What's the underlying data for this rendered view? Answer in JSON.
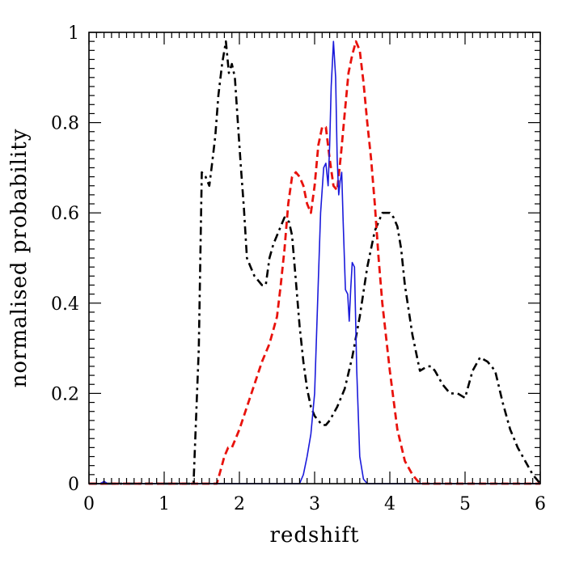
{
  "chart_data": {
    "type": "line",
    "title": "",
    "xlabel": "redshift",
    "ylabel": "normalised probability",
    "xlim": [
      0,
      6
    ],
    "ylim": [
      0,
      1
    ],
    "x_major_ticks": [
      0,
      1,
      2,
      3,
      4,
      5,
      6
    ],
    "x_tick_labels": [
      "0",
      "1",
      "2",
      "3",
      "4",
      "5",
      "6"
    ],
    "y_major_ticks": [
      0,
      0.2,
      0.4,
      0.6,
      0.8,
      1
    ],
    "y_tick_labels": [
      "0",
      "0.2",
      "0.4",
      "0.6",
      "0.8",
      "1"
    ],
    "grid": false,
    "legend": "none",
    "series": [
      {
        "color": "#000000",
        "style": "dash-dot",
        "x": [
          0,
          1.39,
          1.42,
          1.46,
          1.5,
          1.55,
          1.6,
          1.63,
          1.68,
          1.72,
          1.77,
          1.82,
          1.86,
          1.9,
          1.94,
          1.98,
          2.02,
          2.06,
          2.1,
          2.15,
          2.2,
          2.25,
          2.3,
          2.35,
          2.4,
          2.45,
          2.5,
          2.55,
          2.6,
          2.66,
          2.7,
          2.75,
          2.8,
          2.85,
          2.9,
          2.95,
          3.0,
          3.05,
          3.1,
          3.15,
          3.2,
          3.3,
          3.4,
          3.5,
          3.6,
          3.7,
          3.8,
          3.9,
          4.0,
          4.05,
          4.1,
          4.15,
          4.2,
          4.3,
          4.4,
          4.5,
          4.55,
          4.6,
          4.7,
          4.8,
          4.9,
          5.0,
          5.1,
          5.2,
          5.3,
          5.4,
          5.5,
          5.6,
          5.7,
          5.8,
          5.9,
          6.0
        ],
        "y": [
          0,
          0,
          0.13,
          0.3,
          0.69,
          0.68,
          0.66,
          0.7,
          0.77,
          0.86,
          0.93,
          0.98,
          0.91,
          0.93,
          0.9,
          0.8,
          0.7,
          0.61,
          0.5,
          0.48,
          0.46,
          0.45,
          0.44,
          0.44,
          0.5,
          0.53,
          0.55,
          0.57,
          0.59,
          0.58,
          0.55,
          0.45,
          0.35,
          0.27,
          0.21,
          0.17,
          0.15,
          0.14,
          0.13,
          0.13,
          0.14,
          0.17,
          0.21,
          0.28,
          0.37,
          0.48,
          0.56,
          0.6,
          0.6,
          0.59,
          0.57,
          0.52,
          0.44,
          0.33,
          0.25,
          0.26,
          0.26,
          0.25,
          0.22,
          0.2,
          0.2,
          0.19,
          0.25,
          0.28,
          0.27,
          0.25,
          0.18,
          0.12,
          0.08,
          0.05,
          0.02,
          0.0
        ]
      },
      {
        "color": "#e8120c",
        "style": "dashed",
        "x": [
          0,
          1.7,
          1.75,
          1.8,
          1.85,
          1.9,
          1.95,
          2.0,
          2.1,
          2.2,
          2.3,
          2.4,
          2.5,
          2.55,
          2.6,
          2.65,
          2.7,
          2.75,
          2.8,
          2.85,
          2.9,
          2.95,
          3.0,
          3.05,
          3.1,
          3.15,
          3.2,
          3.25,
          3.3,
          3.35,
          3.4,
          3.45,
          3.5,
          3.55,
          3.6,
          3.65,
          3.7,
          3.75,
          3.8,
          3.85,
          3.9,
          4.0,
          4.1,
          4.2,
          4.3,
          4.4,
          6.0
        ],
        "y": [
          0,
          0,
          0.03,
          0.06,
          0.08,
          0.08,
          0.1,
          0.12,
          0.17,
          0.22,
          0.27,
          0.31,
          0.37,
          0.44,
          0.52,
          0.62,
          0.68,
          0.69,
          0.68,
          0.66,
          0.62,
          0.6,
          0.66,
          0.75,
          0.79,
          0.79,
          0.72,
          0.66,
          0.65,
          0.73,
          0.82,
          0.91,
          0.95,
          0.98,
          0.96,
          0.89,
          0.8,
          0.72,
          0.62,
          0.5,
          0.4,
          0.25,
          0.12,
          0.05,
          0.02,
          0.0,
          0.0
        ]
      },
      {
        "color": "#1a1adb",
        "style": "solid",
        "x": [
          0,
          0.15,
          0.2,
          0.25,
          2.8,
          2.85,
          2.9,
          2.95,
          3.0,
          3.05,
          3.08,
          3.12,
          3.15,
          3.18,
          3.2,
          3.22,
          3.25,
          3.28,
          3.3,
          3.32,
          3.34,
          3.36,
          3.38,
          3.41,
          3.44,
          3.46,
          3.48,
          3.5,
          3.53,
          3.56,
          3.6,
          3.65,
          3.7,
          6.0
        ],
        "y": [
          0,
          0,
          0.005,
          0,
          0,
          0.02,
          0.06,
          0.11,
          0.2,
          0.45,
          0.6,
          0.7,
          0.71,
          0.66,
          0.75,
          0.88,
          0.98,
          0.9,
          0.72,
          0.64,
          0.67,
          0.69,
          0.58,
          0.43,
          0.42,
          0.36,
          0.43,
          0.49,
          0.48,
          0.25,
          0.06,
          0.01,
          0.0,
          0.0
        ]
      }
    ]
  }
}
